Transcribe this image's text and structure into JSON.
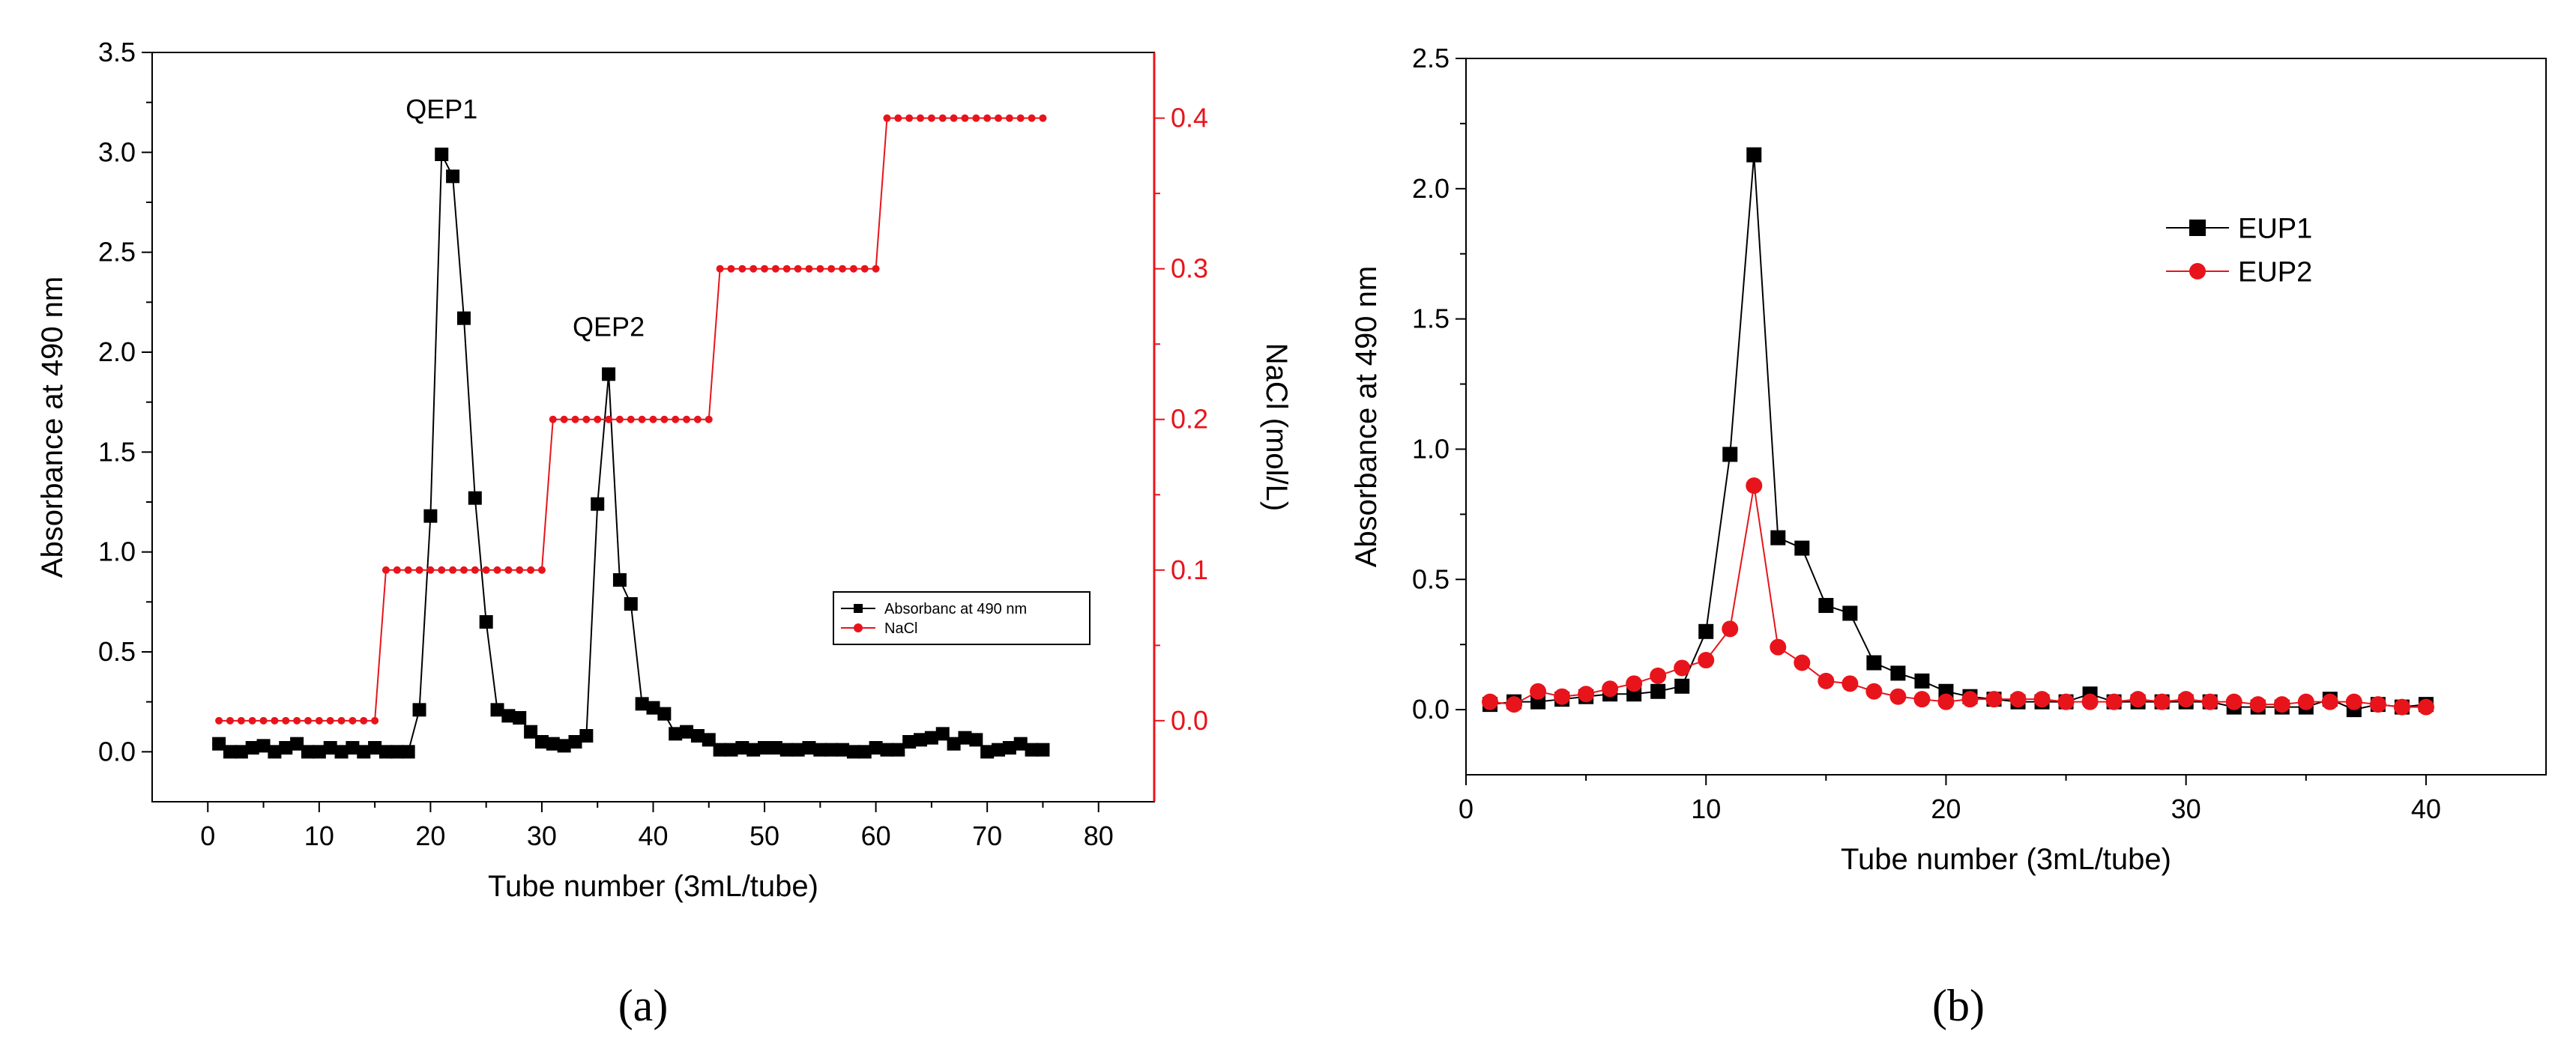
{
  "colors": {
    "black": "#000000",
    "red": "#e8141b"
  },
  "chart_data": [
    {
      "panel_label": "(a)",
      "type": "line",
      "xlabel": "Tube number (3mL/tube)",
      "ylabel": "Absorbance at 490 nm",
      "y2label": "NaCl (mol/L)",
      "xlim": [
        -5,
        85
      ],
      "ylim": [
        -0.25,
        3.5
      ],
      "y2lim": [
        -0.0538,
        0.4436
      ],
      "xticks": [
        0,
        10,
        20,
        30,
        40,
        50,
        60,
        70,
        80
      ],
      "xtick_labels": [
        "0",
        "10",
        "20",
        "30",
        "40",
        "50",
        "60",
        "70",
        "80"
      ],
      "yticks": [
        0.0,
        0.5,
        1.0,
        1.5,
        2.0,
        2.5,
        3.0,
        3.5
      ],
      "ytick_labels": [
        "0.0",
        "0.5",
        "1.0",
        "1.5",
        "2.0",
        "2.5",
        "3.0",
        "3.5"
      ],
      "y2ticks": [
        0.0,
        0.1,
        0.2,
        0.3,
        0.4
      ],
      "y2tick_labels": [
        "0.0",
        "0.1",
        "0.2",
        "0.3",
        "0.4"
      ],
      "legend_position": "lower-right",
      "annotations": [
        {
          "text": "QEP1",
          "x": 21,
          "y": 3.17
        },
        {
          "text": "QEP2",
          "x": 36,
          "y": 2.08
        }
      ],
      "series": [
        {
          "name": "Absorbanc at 490 nm",
          "axis": "left",
          "color": "#000000",
          "marker": "square",
          "x": [
            1,
            2,
            3,
            4,
            5,
            6,
            7,
            8,
            9,
            10,
            11,
            12,
            13,
            14,
            15,
            16,
            17,
            18,
            19,
            20,
            21,
            22,
            23,
            24,
            25,
            26,
            27,
            28,
            29,
            30,
            31,
            32,
            33,
            34,
            35,
            36,
            37,
            38,
            39,
            40,
            41,
            42,
            43,
            44,
            45,
            46,
            47,
            48,
            49,
            50,
            51,
            52,
            53,
            54,
            55,
            56,
            57,
            58,
            59,
            60,
            61,
            62,
            63,
            64,
            65,
            66,
            67,
            68,
            69,
            70,
            71,
            72,
            73,
            74,
            75
          ],
          "y": [
            0.04,
            0.0,
            0.0,
            0.02,
            0.03,
            0.0,
            0.02,
            0.04,
            0.0,
            0.0,
            0.02,
            0.0,
            0.02,
            0.0,
            0.02,
            0.0,
            0.0,
            0.0,
            0.21,
            1.18,
            2.99,
            2.88,
            2.17,
            1.27,
            0.65,
            0.21,
            0.18,
            0.17,
            0.1,
            0.05,
            0.04,
            0.03,
            0.05,
            0.08,
            1.24,
            1.89,
            0.86,
            0.74,
            0.24,
            0.22,
            0.19,
            0.09,
            0.1,
            0.08,
            0.06,
            0.01,
            0.01,
            0.02,
            0.01,
            0.02,
            0.02,
            0.01,
            0.01,
            0.02,
            0.01,
            0.01,
            0.01,
            0.0,
            0.0,
            0.02,
            0.01,
            0.01,
            0.05,
            0.06,
            0.07,
            0.09,
            0.04,
            0.07,
            0.06,
            0.0,
            0.01,
            0.02,
            0.04,
            0.01,
            0.01
          ]
        },
        {
          "name": "NaCl",
          "axis": "right",
          "color": "#e8141b",
          "marker": "circle",
          "x": [
            1,
            2,
            3,
            4,
            5,
            6,
            7,
            8,
            9,
            10,
            11,
            12,
            13,
            14,
            15,
            16,
            17,
            18,
            19,
            20,
            21,
            22,
            23,
            24,
            25,
            26,
            27,
            28,
            29,
            30,
            31,
            32,
            33,
            34,
            35,
            36,
            37,
            38,
            39,
            40,
            41,
            42,
            43,
            44,
            45,
            46,
            47,
            48,
            49,
            50,
            51,
            52,
            53,
            54,
            55,
            56,
            57,
            58,
            59,
            60,
            61,
            62,
            63,
            64,
            65,
            66,
            67,
            68,
            69,
            70,
            71,
            72,
            73,
            74,
            75
          ],
          "y": [
            0.0,
            0.0,
            0.0,
            0.0,
            0.0,
            0.0,
            0.0,
            0.0,
            0.0,
            0.0,
            0.0,
            0.0,
            0.0,
            0.0,
            0.0,
            0.1,
            0.1,
            0.1,
            0.1,
            0.1,
            0.1,
            0.1,
            0.1,
            0.1,
            0.1,
            0.1,
            0.1,
            0.1,
            0.1,
            0.1,
            0.2,
            0.2,
            0.2,
            0.2,
            0.2,
            0.2,
            0.2,
            0.2,
            0.2,
            0.2,
            0.2,
            0.2,
            0.2,
            0.2,
            0.2,
            0.3,
            0.3,
            0.3,
            0.3,
            0.3,
            0.3,
            0.3,
            0.3,
            0.3,
            0.3,
            0.3,
            0.3,
            0.3,
            0.3,
            0.3,
            0.4,
            0.4,
            0.4,
            0.4,
            0.4,
            0.4,
            0.4,
            0.4,
            0.4,
            0.4,
            0.4,
            0.4,
            0.4,
            0.4,
            0.4
          ]
        }
      ]
    },
    {
      "panel_label": "(b)",
      "type": "line",
      "xlabel": "Tube number (3mL/tube)",
      "ylabel": "Absorbance at 490 nm",
      "xlim": [
        0,
        45
      ],
      "ylim": [
        -0.25,
        2.5
      ],
      "xticks": [
        0,
        10,
        20,
        30,
        40
      ],
      "xtick_labels": [
        "0",
        "10",
        "20",
        "30",
        "40"
      ],
      "yticks": [
        0.0,
        0.5,
        1.0,
        1.5,
        2.0,
        2.5
      ],
      "ytick_labels": [
        "0.0",
        "0.5",
        "1.0",
        "1.5",
        "2.0",
        "2.5"
      ],
      "legend_position": "top-right",
      "series": [
        {
          "name": "EUP1",
          "color": "#000000",
          "marker": "square",
          "x": [
            1,
            2,
            3,
            4,
            5,
            6,
            7,
            8,
            9,
            10,
            11,
            12,
            13,
            14,
            15,
            16,
            17,
            18,
            19,
            20,
            21,
            22,
            23,
            24,
            25,
            26,
            27,
            28,
            29,
            30,
            31,
            32,
            33,
            34,
            35,
            36,
            37,
            38,
            39,
            40
          ],
          "y": [
            0.02,
            0.03,
            0.03,
            0.04,
            0.05,
            0.06,
            0.06,
            0.07,
            0.09,
            0.3,
            0.98,
            2.13,
            0.66,
            0.62,
            0.4,
            0.37,
            0.18,
            0.14,
            0.11,
            0.07,
            0.05,
            0.04,
            0.03,
            0.03,
            0.03,
            0.06,
            0.03,
            0.03,
            0.03,
            0.03,
            0.03,
            0.01,
            0.01,
            0.01,
            0.01,
            0.04,
            0.0,
            0.02,
            0.01,
            0.02
          ]
        },
        {
          "name": "EUP2",
          "color": "#e8141b",
          "marker": "circle",
          "x": [
            1,
            2,
            3,
            4,
            5,
            6,
            7,
            8,
            9,
            10,
            11,
            12,
            13,
            14,
            15,
            16,
            17,
            18,
            19,
            20,
            21,
            22,
            23,
            24,
            25,
            26,
            27,
            28,
            29,
            30,
            31,
            32,
            33,
            34,
            35,
            36,
            37,
            38,
            39,
            40
          ],
          "y": [
            0.03,
            0.02,
            0.07,
            0.05,
            0.06,
            0.08,
            0.1,
            0.13,
            0.16,
            0.19,
            0.31,
            0.86,
            0.24,
            0.18,
            0.11,
            0.1,
            0.07,
            0.05,
            0.04,
            0.03,
            0.04,
            0.04,
            0.04,
            0.04,
            0.03,
            0.03,
            0.03,
            0.04,
            0.03,
            0.04,
            0.03,
            0.03,
            0.02,
            0.02,
            0.03,
            0.03,
            0.03,
            0.02,
            0.01,
            0.01
          ]
        }
      ]
    }
  ]
}
